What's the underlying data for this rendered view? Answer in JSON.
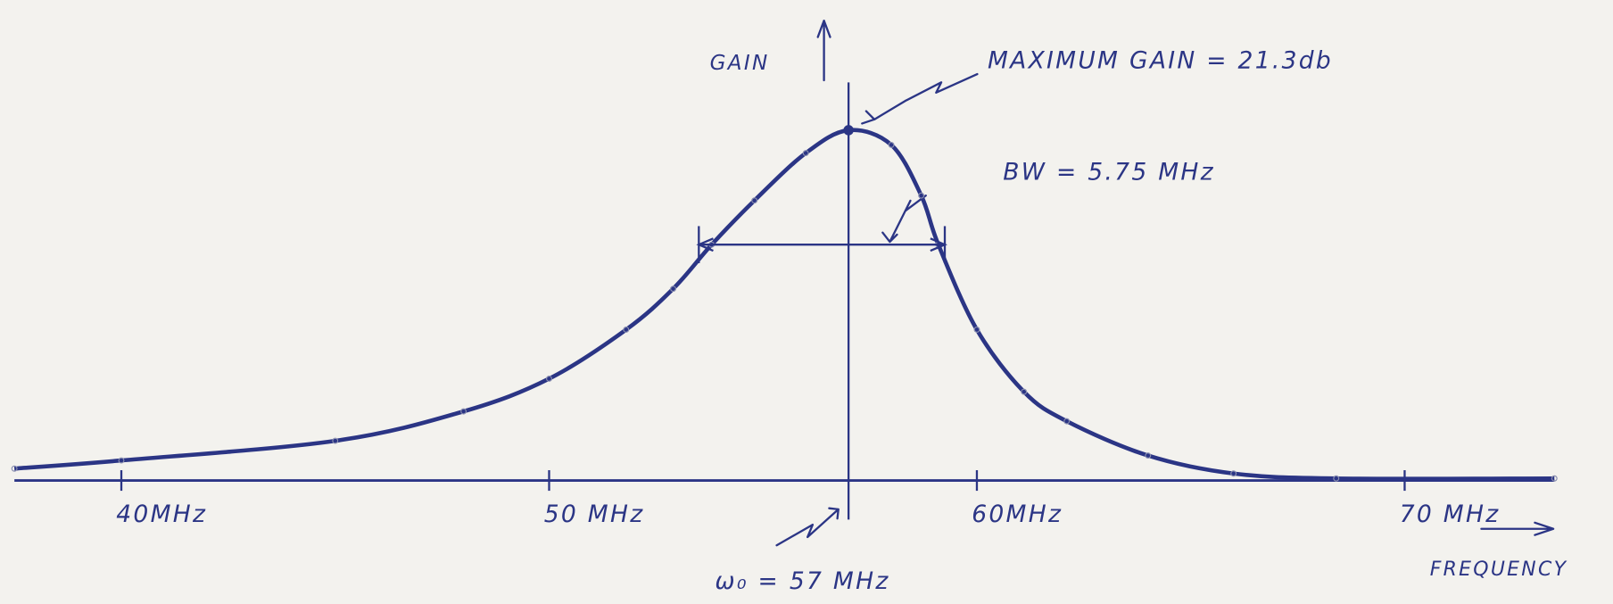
{
  "chart_data": {
    "type": "line",
    "x_label": "FREQUENCY",
    "y_label": "GAIN",
    "x": [
      37.5,
      40,
      45,
      48,
      50,
      51.8,
      52.9,
      53.8,
      54.8,
      56.0,
      57,
      58.0,
      58.7,
      59.1,
      60.0,
      61.1,
      62.1,
      64.0,
      66.0,
      68.4,
      73.5
    ],
    "series": [
      {
        "color": "#2b3585",
        "values": [
          0.6,
          1.1,
          2.3,
          4.1,
          6.1,
          9.1,
          11.6,
          14.3,
          17.0,
          19.9,
          21.3,
          20.4,
          17.3,
          14.3,
          9.1,
          5.3,
          3.5,
          1.4,
          0.3,
          0,
          0
        ]
      }
    ],
    "xlim": [
      37.5,
      73.5
    ],
    "ylim": [
      0,
      28
    ],
    "xticks": [
      {
        "value": 40,
        "label": "40MHz"
      },
      {
        "value": 50,
        "label": "50 MHz"
      },
      {
        "value": 60,
        "label": "60MHz"
      },
      {
        "value": 70,
        "label": "70 MHz"
      }
    ],
    "annotations": {
      "max_gain": {
        "label": "MAXIMUM GAIN = 21.3db",
        "value": 21.3
      },
      "center_frequency": {
        "label": "ω₀ = 57 MHz",
        "x": 57
      },
      "bandwidth": {
        "label": "BW = 5.75 MHz",
        "x": [
          53.5,
          59.25
        ],
        "y": 14.3
      }
    }
  }
}
